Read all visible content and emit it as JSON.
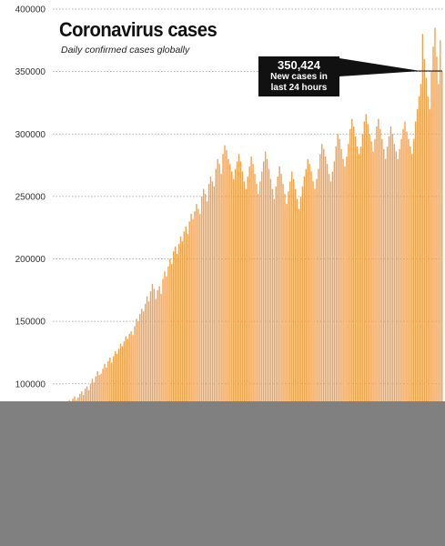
{
  "title": "Coronavirus cases",
  "subtitle": "Daily confirmed cases globally",
  "callout": {
    "value": "350,424",
    "line1": "New cases in",
    "line2": "last 24 hours"
  },
  "colors": {
    "bar": "#f4a04c",
    "grid": "#9a9a9a",
    "callout_bg": "#111111",
    "overlay": "#808080"
  },
  "chart_data": {
    "type": "bar",
    "title": "Coronavirus cases",
    "subtitle": "Daily confirmed cases globally",
    "xlabel": "",
    "ylabel": "",
    "ylim": [
      0,
      400000
    ],
    "yticks": [
      "400000",
      "350000",
      "300000",
      "250000",
      "200000",
      "150000",
      "100000"
    ],
    "grid": true,
    "annotation": {
      "text": "350,424 New cases in last 24 hours",
      "value": 350424
    },
    "values": [
      80000,
      82000,
      78000,
      79000,
      81000,
      80000,
      83000,
      86000,
      84000,
      87000,
      85000,
      88000,
      90000,
      87000,
      89000,
      92000,
      94000,
      91000,
      96000,
      98000,
      95000,
      100000,
      104000,
      101000,
      106000,
      110000,
      107000,
      108000,
      112000,
      116000,
      113000,
      118000,
      121000,
      117000,
      122000,
      126000,
      124000,
      128000,
      132000,
      130000,
      134000,
      138000,
      136000,
      140000,
      142000,
      139000,
      146000,
      152000,
      150000,
      156000,
      160000,
      158000,
      164000,
      170000,
      166000,
      174000,
      180000,
      176000,
      168000,
      175000,
      178000,
      172000,
      184000,
      190000,
      186000,
      194000,
      200000,
      196000,
      206000,
      210000,
      204000,
      212000,
      218000,
      214000,
      222000,
      226000,
      220000,
      230000,
      236000,
      232000,
      238000,
      244000,
      240000,
      236000,
      250000,
      256000,
      252000,
      246000,
      260000,
      266000,
      262000,
      258000,
      272000,
      280000,
      276000,
      268000,
      284000,
      291000,
      287000,
      280000,
      276000,
      270000,
      264000,
      272000,
      278000,
      284000,
      278000,
      270000,
      262000,
      256000,
      266000,
      274000,
      282000,
      276000,
      268000,
      260000,
      252000,
      262000,
      270000,
      278000,
      286000,
      280000,
      272000,
      264000,
      256000,
      248000,
      258000,
      266000,
      274000,
      268000,
      260000,
      252000,
      244000,
      254000,
      262000,
      270000,
      264000,
      256000,
      248000,
      240000,
      250000,
      258000,
      266000,
      272000,
      280000,
      276000,
      270000,
      262000,
      256000,
      264000,
      272000,
      284000,
      292000,
      288000,
      282000,
      276000,
      268000,
      262000,
      270000,
      278000,
      290000,
      300000,
      296000,
      288000,
      280000,
      274000,
      282000,
      292000,
      304000,
      312000,
      306000,
      298000,
      290000,
      284000,
      290000,
      300000,
      310000,
      316000,
      308000,
      300000,
      294000,
      286000,
      296000,
      306000,
      312000,
      304000,
      296000,
      288000,
      280000,
      290000,
      298000,
      306000,
      300000,
      292000,
      286000,
      280000,
      288000,
      296000,
      304000,
      310000,
      302000,
      296000,
      290000,
      284000,
      296000,
      310000,
      320000,
      330000,
      340000,
      380000,
      360000,
      345000,
      330000,
      320000,
      350000,
      370000,
      385000,
      362000,
      340000,
      375000,
      350424
    ]
  }
}
